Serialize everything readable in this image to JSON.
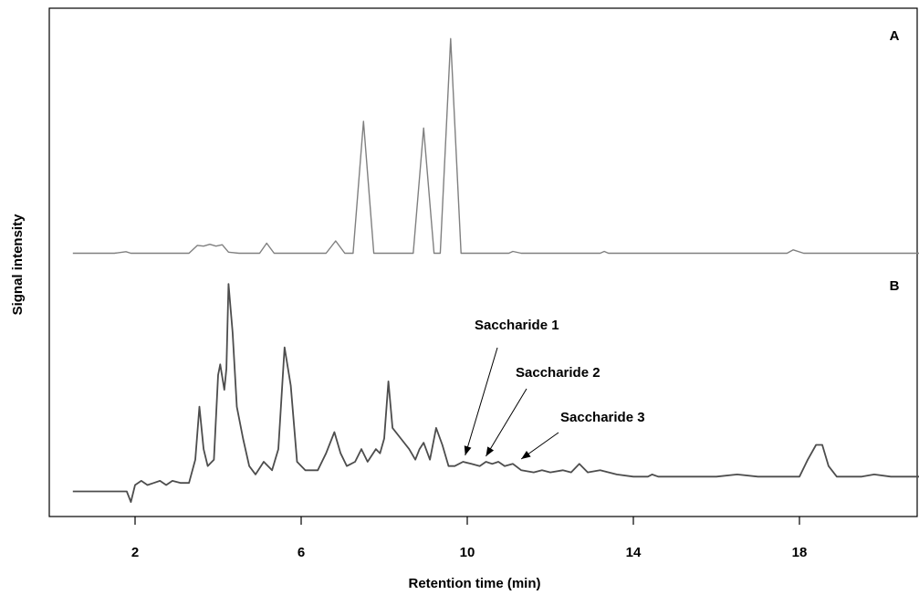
{
  "chart_data": {
    "type": "line",
    "title": "",
    "xlabel": "Retention time (min)",
    "ylabel": "Signal intensity",
    "xlim": [
      0.2,
      21
    ],
    "xticks": [
      2,
      6,
      10,
      14,
      18
    ],
    "xtick_labels": [
      "2",
      "6",
      "10",
      "14",
      "18"
    ],
    "grid": false,
    "panel_labels": [
      "A",
      "B"
    ],
    "series": [
      {
        "color": "#808080",
        "points": [
          [
            0.5,
            0
          ],
          [
            1.5,
            0
          ],
          [
            1.78,
            0.7
          ],
          [
            1.9,
            0
          ],
          [
            3.3,
            0
          ],
          [
            3.5,
            3.5
          ],
          [
            3.65,
            3.2
          ],
          [
            3.8,
            4
          ],
          [
            3.95,
            3.2
          ],
          [
            4.1,
            3.8
          ],
          [
            4.25,
            0.5
          ],
          [
            4.5,
            0
          ],
          [
            5.0,
            0
          ],
          [
            5.17,
            4.5
          ],
          [
            5.35,
            0
          ],
          [
            6.6,
            0
          ],
          [
            6.83,
            5.5
          ],
          [
            7.05,
            0
          ],
          [
            7.25,
            0
          ],
          [
            7.5,
            59
          ],
          [
            7.75,
            0
          ],
          [
            8.7,
            0
          ],
          [
            8.95,
            56
          ],
          [
            9.2,
            0
          ],
          [
            9.35,
            0
          ],
          [
            9.6,
            96
          ],
          [
            9.85,
            0
          ],
          [
            11.0,
            0
          ],
          [
            11.1,
            0.8
          ],
          [
            11.3,
            0
          ],
          [
            13.2,
            0
          ],
          [
            13.3,
            0.8
          ],
          [
            13.4,
            0
          ],
          [
            17.7,
            0
          ],
          [
            17.85,
            1.5
          ],
          [
            18.1,
            0
          ],
          [
            21,
            0
          ]
        ]
      },
      {
        "color": "#4d4d4d",
        "points": [
          [
            0.5,
            0
          ],
          [
            1.8,
            0
          ],
          [
            1.9,
            -5
          ],
          [
            2.0,
            3
          ],
          [
            2.15,
            5
          ],
          [
            2.3,
            3
          ],
          [
            2.45,
            4
          ],
          [
            2.6,
            5
          ],
          [
            2.75,
            3
          ],
          [
            2.9,
            5
          ],
          [
            3.1,
            4
          ],
          [
            3.3,
            4
          ],
          [
            3.45,
            15
          ],
          [
            3.55,
            40
          ],
          [
            3.65,
            20
          ],
          [
            3.75,
            12
          ],
          [
            3.9,
            15
          ],
          [
            4.0,
            55
          ],
          [
            4.05,
            60
          ],
          [
            4.15,
            48
          ],
          [
            4.2,
            58
          ],
          [
            4.25,
            98
          ],
          [
            4.35,
            75
          ],
          [
            4.45,
            40
          ],
          [
            4.6,
            25
          ],
          [
            4.75,
            12
          ],
          [
            4.9,
            8
          ],
          [
            5.1,
            14
          ],
          [
            5.3,
            10
          ],
          [
            5.45,
            20
          ],
          [
            5.6,
            68
          ],
          [
            5.75,
            50
          ],
          [
            5.9,
            14
          ],
          [
            6.1,
            10
          ],
          [
            6.4,
            10
          ],
          [
            6.6,
            18
          ],
          [
            6.8,
            28
          ],
          [
            6.95,
            18
          ],
          [
            7.1,
            12
          ],
          [
            7.3,
            14
          ],
          [
            7.45,
            20
          ],
          [
            7.6,
            14
          ],
          [
            7.8,
            20
          ],
          [
            7.9,
            18
          ],
          [
            8.0,
            25
          ],
          [
            8.1,
            52
          ],
          [
            8.2,
            30
          ],
          [
            8.4,
            25
          ],
          [
            8.6,
            20
          ],
          [
            8.75,
            15
          ],
          [
            8.85,
            20
          ],
          [
            8.95,
            23
          ],
          [
            9.1,
            15
          ],
          [
            9.25,
            30
          ],
          [
            9.4,
            22
          ],
          [
            9.55,
            12
          ],
          [
            9.7,
            12
          ],
          [
            9.9,
            14
          ],
          [
            10.1,
            13
          ],
          [
            10.3,
            12
          ],
          [
            10.45,
            14
          ],
          [
            10.6,
            13
          ],
          [
            10.75,
            14
          ],
          [
            10.9,
            12
          ],
          [
            11.1,
            13
          ],
          [
            11.3,
            10
          ],
          [
            11.6,
            9
          ],
          [
            11.8,
            10
          ],
          [
            12.0,
            9
          ],
          [
            12.3,
            10
          ],
          [
            12.5,
            9
          ],
          [
            12.7,
            13
          ],
          [
            12.9,
            9
          ],
          [
            13.2,
            10
          ],
          [
            13.6,
            8
          ],
          [
            14.0,
            7
          ],
          [
            14.35,
            7
          ],
          [
            14.45,
            8
          ],
          [
            14.6,
            7
          ],
          [
            15.5,
            7
          ],
          [
            16.0,
            7
          ],
          [
            16.5,
            8
          ],
          [
            17.0,
            7
          ],
          [
            17.5,
            7
          ],
          [
            18.0,
            7
          ],
          [
            18.2,
            15
          ],
          [
            18.4,
            22
          ],
          [
            18.55,
            22
          ],
          [
            18.7,
            12
          ],
          [
            18.9,
            7
          ],
          [
            19.5,
            7
          ],
          [
            19.8,
            8
          ],
          [
            20.2,
            7
          ],
          [
            21,
            7
          ]
        ]
      }
    ],
    "annotations": [
      {
        "text": "Saccharide 1",
        "target_x": 9.95
      },
      {
        "text": "Saccharide 2",
        "target_x": 10.45
      },
      {
        "text": "Saccharide 3",
        "target_x": 11.3
      }
    ]
  }
}
